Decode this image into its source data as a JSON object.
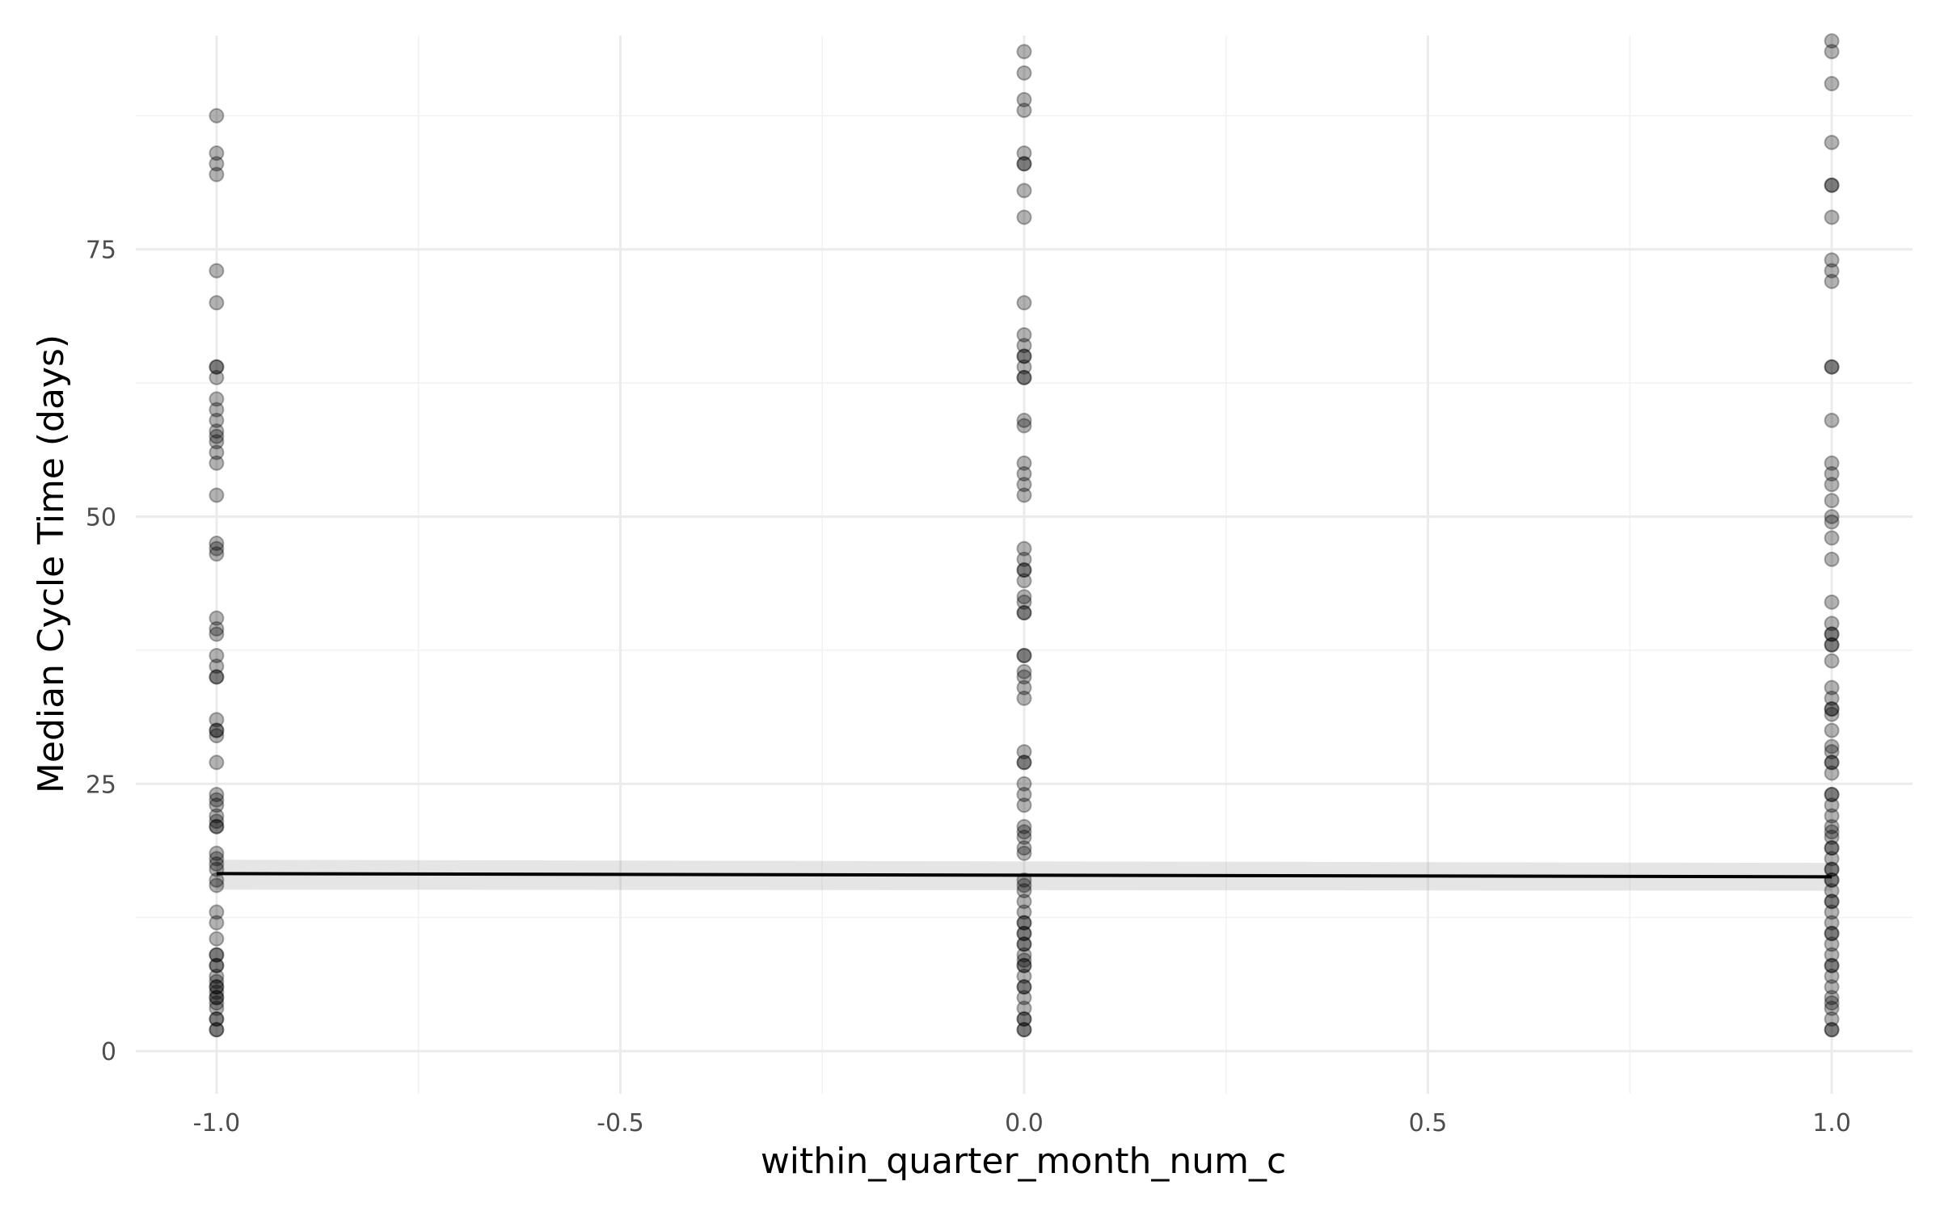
{
  "chart_data": {
    "type": "scatter",
    "title": "",
    "xlabel": "within_quarter_month_num_c",
    "ylabel": "Median Cycle Time (days)",
    "xlim": [
      -1.1,
      1.1
    ],
    "ylim": [
      -4,
      95
    ],
    "x_ticks": [
      -1.0,
      -0.5,
      0.0,
      0.5,
      1.0
    ],
    "x_tick_labels": [
      "-1.0",
      "-0.5",
      "0.0",
      "0.5",
      "1.0"
    ],
    "y_ticks": [
      0,
      25,
      50,
      75
    ],
    "y_tick_labels": [
      "0",
      "25",
      "50",
      "75"
    ],
    "grid": true,
    "series": [
      {
        "x": -1.0,
        "values": [
          87.5,
          84,
          83,
          82,
          73,
          70,
          64,
          64,
          63,
          61,
          60,
          59,
          58,
          57.5,
          57,
          56,
          55,
          52,
          47.5,
          47,
          46.5,
          40.5,
          39.5,
          39,
          37,
          36,
          35,
          35,
          31,
          30,
          30,
          29.5,
          27,
          24,
          23.5,
          23,
          22,
          21.5,
          21,
          21,
          18.5,
          18,
          17.5,
          17,
          16,
          15.5,
          13,
          12,
          10.5,
          9,
          9,
          8,
          8,
          7,
          6.5,
          6,
          6,
          5.5,
          5,
          5,
          4.5,
          4,
          3,
          3,
          2,
          2
        ]
      },
      {
        "x": 0.0,
        "values": [
          93.5,
          91.5,
          89,
          88,
          84,
          83,
          83,
          80.5,
          78,
          70,
          67,
          66,
          65,
          65,
          64,
          63,
          63,
          59,
          58.5,
          55,
          54,
          53,
          52,
          47,
          46,
          45,
          45,
          44,
          42.5,
          42,
          41,
          41,
          37,
          37,
          35.5,
          35,
          34,
          33,
          28,
          27,
          27,
          25,
          24,
          23,
          21,
          20.5,
          20,
          19,
          18.5,
          16,
          15.5,
          15,
          14,
          13,
          12,
          12,
          11,
          11,
          10,
          10,
          9,
          8.5,
          8,
          8,
          7,
          6,
          6,
          5,
          4,
          3,
          3,
          2,
          2
        ]
      },
      {
        "x": 1.0,
        "values": [
          94.5,
          93.5,
          90.5,
          85,
          81,
          81,
          78,
          74,
          73,
          72,
          64,
          64,
          59,
          55,
          54,
          53,
          51.5,
          50,
          49.5,
          48,
          46,
          42,
          40,
          39,
          39,
          38,
          38,
          36.5,
          34,
          33,
          32,
          32,
          31.5,
          30,
          28.5,
          28,
          27,
          27,
          26,
          24,
          24,
          23,
          22,
          21,
          20.5,
          20,
          19,
          19,
          18,
          17,
          17,
          16,
          16,
          15,
          14,
          14,
          13,
          12,
          11,
          11,
          10,
          9,
          8,
          8,
          7,
          6,
          5,
          4.5,
          4,
          3,
          2,
          2
        ]
      }
    ],
    "fit_line": {
      "x": [
        -1.0,
        1.0
      ],
      "y": [
        16.6,
        16.3
      ]
    },
    "ribbon": {
      "x": [
        -1.0,
        1.0
      ],
      "lower": [
        15.1,
        15.0
      ],
      "upper": [
        17.9,
        17.6
      ]
    }
  }
}
